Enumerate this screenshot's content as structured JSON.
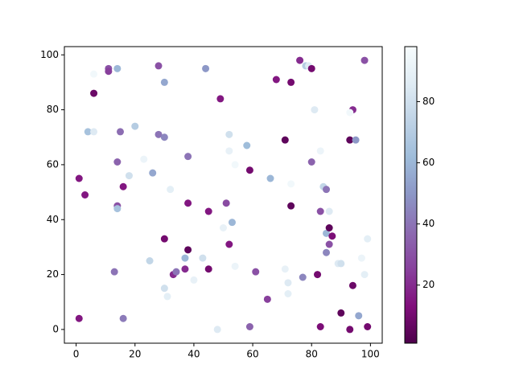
{
  "chart_data": {
    "type": "scatter",
    "x": [
      1,
      1,
      3,
      4,
      6,
      6,
      6,
      11,
      11,
      13,
      14,
      14,
      14,
      14,
      15,
      16,
      16,
      18,
      20,
      23,
      25,
      26,
      28,
      28,
      30,
      30,
      30,
      30,
      31,
      32,
      33,
      34,
      37,
      37,
      38,
      38,
      38,
      40,
      43,
      44,
      45,
      45,
      48,
      49,
      50,
      51,
      52,
      52,
      52,
      53,
      54,
      54,
      58,
      59,
      59,
      61,
      65,
      66,
      68,
      71,
      71,
      72,
      72,
      73,
      73,
      73,
      76,
      77,
      78,
      79,
      80,
      80,
      81,
      82,
      83,
      83,
      83,
      84,
      85,
      85,
      86,
      85,
      86,
      86,
      87,
      89,
      90,
      90,
      93,
      93,
      94,
      94,
      95,
      96,
      97,
      98,
      98,
      99,
      99,
      93
    ],
    "y": [
      4,
      55,
      49,
      72,
      72,
      86,
      93,
      95,
      94,
      21,
      95,
      61,
      45,
      44,
      72,
      52,
      4,
      56,
      74,
      62,
      25,
      57,
      96,
      71,
      70,
      90,
      33,
      15,
      12,
      51,
      20,
      21,
      22,
      26,
      29,
      46,
      63,
      18,
      26,
      95,
      43,
      22,
      0,
      84,
      37,
      46,
      71,
      65,
      31,
      39,
      23,
      60,
      67,
      58,
      1,
      21,
      11,
      55,
      91,
      69,
      22,
      17,
      13,
      53,
      90,
      45,
      98,
      19,
      96,
      96,
      95,
      61,
      80,
      20,
      1,
      43,
      65,
      52,
      51,
      35,
      43,
      28,
      37,
      31,
      34,
      24,
      24,
      6,
      0,
      69,
      80,
      16,
      69,
      5,
      26,
      20,
      98,
      1,
      33,
      79
    ],
    "c": [
      15,
      15,
      15,
      65,
      85,
      8,
      95,
      30,
      25,
      40,
      60,
      35,
      30,
      65,
      38,
      15,
      42,
      80,
      70,
      92,
      75,
      55,
      30,
      40,
      45,
      55,
      10,
      80,
      88,
      88,
      20,
      40,
      20,
      60,
      5,
      15,
      40,
      90,
      80,
      50,
      15,
      10,
      85,
      15,
      90,
      28,
      80,
      90,
      15,
      60,
      92,
      95,
      62,
      10,
      35,
      30,
      25,
      60,
      15,
      5,
      90,
      85,
      88,
      95,
      10,
      5,
      20,
      45,
      70,
      85,
      10,
      35,
      85,
      10,
      12,
      30,
      92,
      75,
      40,
      60,
      85,
      45,
      5,
      30,
      12,
      85,
      80,
      5,
      10,
      5,
      20,
      8,
      50,
      55,
      92,
      88,
      30,
      10,
      88,
      95
    ],
    "xlim": [
      -4,
      104
    ],
    "ylim": [
      -5,
      103
    ],
    "xticks": [
      0,
      20,
      40,
      60,
      80,
      100
    ],
    "yticks": [
      0,
      20,
      40,
      60,
      80,
      100
    ],
    "clim": [
      1,
      98
    ],
    "cticks": [
      20,
      40,
      60,
      80
    ],
    "colormap": [
      "#4d004b",
      "#810f7c",
      "#88419d",
      "#8c6bb1",
      "#8c96c6",
      "#9ebcda",
      "#bfd3e6",
      "#e0ecf4",
      "#f7fcfd"
    ]
  }
}
